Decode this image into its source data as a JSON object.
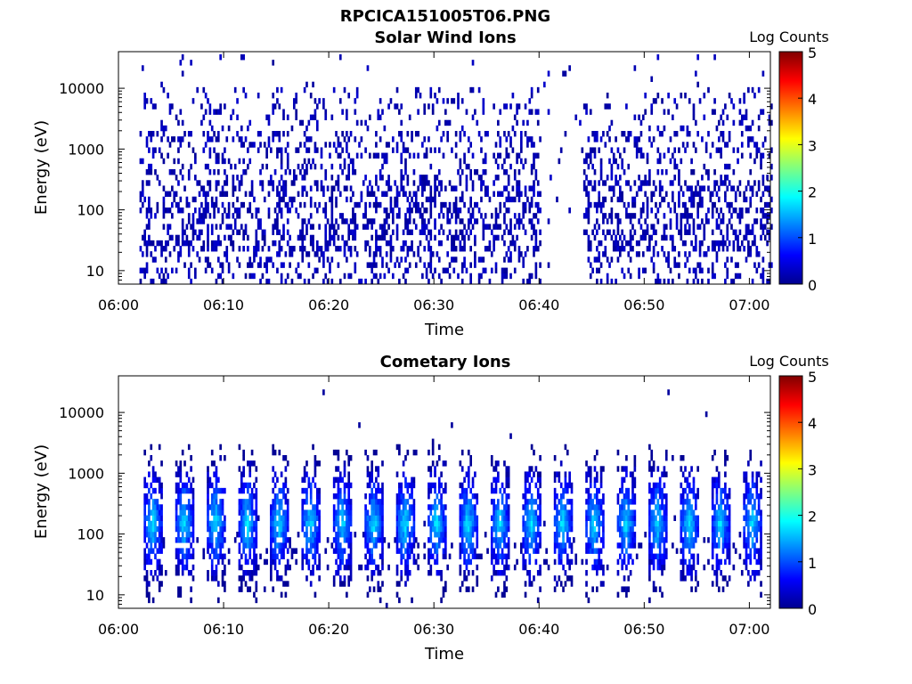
{
  "figure": {
    "title": "RPCICA151005T06.PNG"
  },
  "chart_data": [
    {
      "type": "heatmap",
      "title": "Solar Wind Ions",
      "xlabel": "Time",
      "ylabel": "Energy (eV)",
      "xlim": [
        "06:00",
        "07:02"
      ],
      "ylim": [
        6,
        40000
      ],
      "yscale": "log",
      "xticks": [
        "06:00",
        "06:10",
        "06:20",
        "06:30",
        "06:40",
        "06:50",
        "07:00"
      ],
      "yticks": [
        "10",
        "100",
        "1000",
        "10000"
      ],
      "colorbar": {
        "label": "Log Counts",
        "range": [
          0,
          5
        ],
        "ticks": [
          "0",
          "1",
          "2",
          "3",
          "4",
          "5"
        ],
        "colormap": "jet"
      },
      "data_start": "06:02",
      "data_end": "07:02",
      "gap": [
        "06:40",
        "06:44"
      ],
      "typical_log_counts": 0.1,
      "peak_energy_range_eV": [
        100,
        300
      ],
      "sparse_energy_range_eV": [
        1000,
        30000
      ]
    },
    {
      "type": "heatmap",
      "title": "Cometary Ions",
      "xlabel": "Time",
      "ylabel": "Energy (eV)",
      "xlim": [
        "06:00",
        "07:02"
      ],
      "ylim": [
        6,
        40000
      ],
      "yscale": "log",
      "xticks": [
        "06:00",
        "06:10",
        "06:20",
        "06:30",
        "06:40",
        "06:50",
        "07:00"
      ],
      "yticks": [
        "10",
        "100",
        "1000",
        "10000"
      ],
      "colorbar": {
        "label": "Log Counts",
        "range": [
          0,
          5
        ],
        "ticks": [
          "0",
          "1",
          "2",
          "3",
          "4",
          "5"
        ],
        "colormap": "jet"
      },
      "data_start": "06:02",
      "data_end": "07:02",
      "burst_period_minutes": 3,
      "burst_peak_energy_eV": 150,
      "burst_peak_log_counts": 1.8,
      "burst_energy_range_eV": [
        10,
        1000
      ]
    }
  ]
}
